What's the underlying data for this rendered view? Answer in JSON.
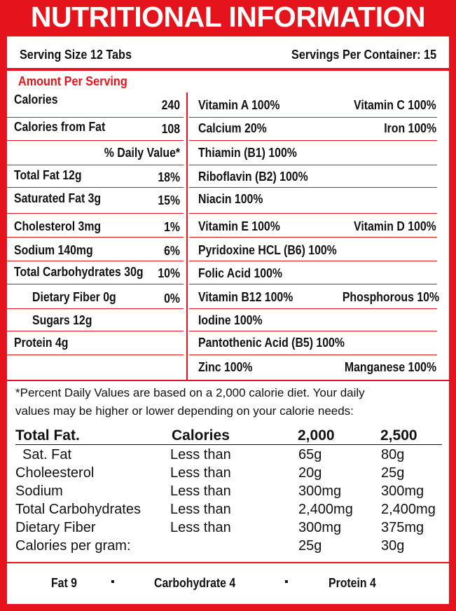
{
  "title": "NUTRITIONAL INFORMATION",
  "serving_size": "Serving Size 12 Tabs",
  "servings_per_container": "Servings Per Container: 15",
  "amount_per_serving": "Amount Per Serving",
  "left_rows": [
    {
      "label": "Calories",
      "value": "240"
    },
    {
      "label": "Calories from Fat",
      "value": "108"
    },
    {
      "label": "",
      "value": "% Daily Value*"
    },
    {
      "label": "Total Fat 12g",
      "value": "18%"
    },
    {
      "label": "Saturated Fat 3g",
      "value": "15%"
    },
    {
      "label": "Cholesterol 3mg",
      "value": "1%"
    },
    {
      "label": "Sodium 140mg",
      "value": "6%"
    },
    {
      "label": "Total Carbohydrates 30g",
      "value": "10%"
    },
    {
      "label": "Dietary Fiber 0g",
      "value": "0%"
    },
    {
      "label": "Sugars 12g",
      "value": ""
    },
    {
      "label": "Protein 4g",
      "value": ""
    }
  ],
  "right_rows": [
    {
      "left": "Vitamin A 100%",
      "right": "Vitamin C 100%"
    },
    {
      "left": "Calcium 20%",
      "right": "Iron 100%"
    },
    {
      "left": "Thiamin (B1) 100%",
      "right": ""
    },
    {
      "left": "Riboflavin (B2) 100%",
      "right": ""
    },
    {
      "left": "Niacin 100%",
      "right": ""
    },
    {
      "left": "Vitamin E 100%",
      "right": "Vitamin D 100%"
    },
    {
      "left": "Pyridoxine HCL (B6) 100%",
      "right": ""
    },
    {
      "left": "Folic Acid 100%",
      "right": ""
    },
    {
      "left": "Vitamin B12 100%",
      "right": "Phosphorous 10%"
    },
    {
      "left": "Iodine 100%",
      "right": ""
    },
    {
      "left": "Pantothenic Acid (B5) 100%",
      "right": ""
    },
    {
      "left": "Zinc 100%",
      "right": "Manganese 100%"
    }
  ],
  "footnote_line1": "*Percent Daily Values are based on a 2,000 calorie diet. Your daily",
  "footnote_line2": "values may be higher or lower depending on your calorie needs:",
  "dv_table": {
    "headers": [
      "Total Fat.",
      "Calories",
      "2,000",
      "2,500"
    ],
    "rows": [
      [
        "Sat. Fat",
        "Less than",
        "65g",
        "80g"
      ],
      [
        "Choleesterol",
        "Less than",
        "20g",
        "25g"
      ],
      [
        "Sodium",
        "Less than",
        "300mg",
        "300mg"
      ],
      [
        "Total Carbohydrates",
        "Less than",
        "2,400mg",
        "2,400mg"
      ],
      [
        "Dietary Fiber",
        "Less than",
        "300mg",
        "375mg"
      ],
      [
        "Calories  per gram:",
        "",
        "25g",
        "30g"
      ]
    ]
  },
  "calorie_breakdown": {
    "fat": "Fat 9",
    "carb": "Carbohydrate 4",
    "protein": "Protein 4",
    "separator": "▪"
  },
  "colors": {
    "brand_red": "#e3141b"
  }
}
